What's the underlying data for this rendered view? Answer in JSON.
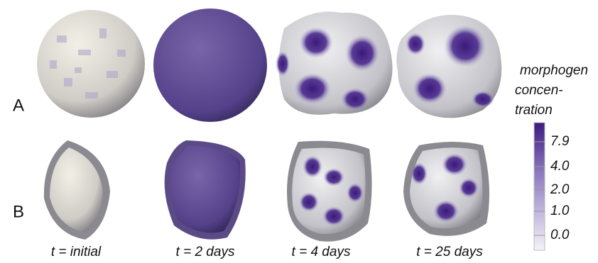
{
  "panels": {
    "row_a": {
      "label": "A"
    },
    "row_b": {
      "label": "B"
    }
  },
  "time_labels": [
    "t = initial",
    "t = 2 days",
    "t = 4 days",
    "t = 25 days"
  ],
  "colorbar": {
    "title": [
      "morphogen",
      "concen-",
      "tration"
    ],
    "ticks": [
      "7.9",
      "4.0",
      "2.0",
      "1.0",
      "0.0"
    ]
  }
}
